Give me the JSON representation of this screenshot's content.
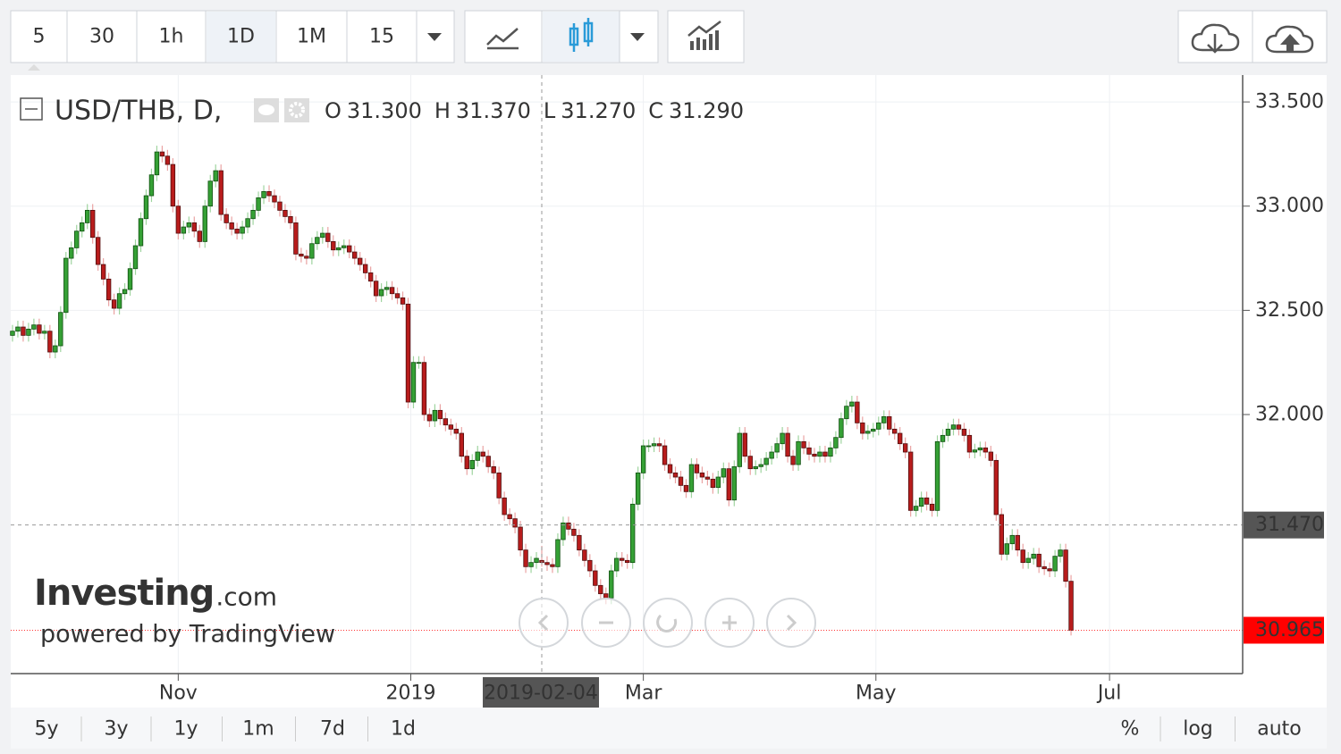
{
  "toolbar": {
    "intervals": [
      "5",
      "30",
      "1h",
      "1D",
      "1M",
      "15"
    ]
  },
  "chart_data": {
    "type": "candlestick",
    "title": "USD/THB, D,",
    "ohlc_legend": [
      {
        "key": "O",
        "value": "31.300"
      },
      {
        "key": "H",
        "value": "31.370"
      },
      {
        "key": "L",
        "value": "31.270"
      },
      {
        "key": "C",
        "value": "31.290"
      }
    ],
    "up_color": "#35a035",
    "down_color": "#b81c1c",
    "grid": true,
    "xlim": [
      -0.33,
      230.1
    ],
    "xticks": [
      {
        "value": 31,
        "label": "Nov"
      },
      {
        "value": 74.5,
        "label": "2019"
      },
      {
        "value": 118,
        "label": "Mar"
      },
      {
        "value": 161.5,
        "label": "May"
      },
      {
        "value": 205.2,
        "label": "Jul"
      }
    ],
    "ylim": [
      30.757,
      33.629
    ],
    "yticks": [
      {
        "value": 32,
        "label": "32.000"
      },
      {
        "value": 32.5,
        "label": "32.500"
      },
      {
        "value": 33,
        "label": "33.000"
      },
      {
        "value": 33.5,
        "label": "33.500"
      }
    ],
    "crosshair": {
      "x": {
        "value": 99,
        "label": "2019-02-04"
      },
      "y": {
        "value": 31.47,
        "label": "31.470"
      }
    },
    "last_price": {
      "value": 30.965,
      "label": "30.965"
    },
    "open": [
      32.38,
      32.4,
      32.42,
      32.38,
      32.41,
      32.43,
      32.39,
      32.4,
      32.3,
      32.33,
      32.49,
      32.75,
      32.8,
      32.88,
      32.92,
      32.98,
      32.85,
      32.72,
      32.65,
      32.55,
      32.51,
      32.58,
      32.6,
      32.7,
      32.81,
      32.94,
      33.05,
      33.15,
      33.26,
      33.24,
      33.2,
      33.0,
      32.87,
      32.9,
      32.92,
      32.88,
      32.83,
      33.0,
      33.12,
      33.17,
      32.96,
      32.92,
      32.89,
      32.87,
      32.9,
      32.94,
      32.98,
      33.04,
      33.07,
      33.05,
      33.02,
      32.98,
      32.95,
      32.92,
      32.77,
      32.76,
      32.75,
      32.82,
      32.85,
      32.87,
      32.83,
      32.79,
      32.8,
      32.81,
      32.78,
      32.75,
      32.72,
      32.68,
      32.64,
      32.57,
      32.6,
      32.61,
      32.58,
      32.56,
      32.53,
      32.06,
      32.25,
      32.25,
      32.0,
      31.97,
      32.02,
      31.98,
      31.95,
      31.93,
      31.91,
      31.8,
      31.74,
      31.78,
      31.82,
      31.8,
      31.75,
      31.72,
      31.6,
      31.52,
      31.5,
      31.46,
      31.35,
      31.27,
      31.29,
      31.3,
      31.29,
      31.28,
      31.27,
      31.4,
      31.48,
      31.45,
      31.42,
      31.35,
      31.3,
      31.25,
      31.18,
      31.14,
      31.12,
      31.25,
      31.31,
      31.3,
      31.29,
      31.57,
      31.72,
      31.85,
      31.85,
      31.86,
      31.85,
      31.76,
      31.72,
      31.7,
      31.66,
      31.63,
      31.76,
      31.72,
      31.7,
      31.69,
      31.65,
      31.7,
      31.74,
      31.59,
      31.75,
      31.91,
      31.8,
      31.74,
      31.75,
      31.76,
      31.79,
      31.82,
      31.86,
      31.91,
      31.8,
      31.76,
      31.87,
      31.84,
      31.81,
      31.8,
      31.82,
      31.8,
      31.84,
      31.89,
      31.98,
      32.04,
      32.06,
      31.96,
      31.91,
      31.92,
      31.93,
      31.96,
      31.99,
      31.93,
      31.91,
      31.86,
      31.82,
      31.54,
      31.56,
      31.6,
      31.57,
      31.54,
      31.87,
      31.9,
      31.93,
      31.95,
      31.93,
      31.9,
      31.82,
      31.83,
      31.84,
      31.82,
      31.78,
      31.52,
      31.33,
      31.38,
      31.42,
      31.35,
      31.29,
      31.31,
      31.33,
      31.27,
      31.26,
      31.25,
      31.32,
      31.35,
      31.2
    ],
    "high": [
      32.43,
      32.45,
      32.45,
      32.44,
      32.46,
      32.46,
      32.43,
      32.43,
      32.36,
      32.52,
      32.78,
      32.83,
      32.91,
      32.95,
      33.01,
      33.01,
      32.88,
      32.75,
      32.68,
      32.58,
      32.61,
      32.63,
      32.73,
      32.84,
      32.97,
      33.08,
      33.18,
      33.29,
      33.29,
      33.27,
      33.23,
      33.03,
      32.93,
      32.95,
      32.95,
      32.91,
      33.03,
      33.15,
      33.2,
      33.2,
      32.99,
      32.95,
      32.92,
      32.93,
      32.97,
      33.01,
      33.07,
      33.1,
      33.1,
      33.08,
      33.05,
      33.01,
      32.98,
      32.95,
      32.8,
      32.79,
      32.85,
      32.88,
      32.9,
      32.9,
      32.86,
      32.83,
      32.84,
      32.84,
      32.81,
      32.78,
      32.75,
      32.71,
      32.67,
      32.63,
      32.64,
      32.64,
      32.61,
      32.59,
      32.56,
      32.28,
      32.28,
      32.28,
      32.03,
      32.05,
      32.05,
      32.01,
      31.98,
      31.96,
      31.94,
      31.83,
      31.81,
      31.85,
      31.85,
      31.83,
      31.78,
      31.75,
      31.63,
      31.55,
      31.53,
      31.49,
      31.38,
      31.32,
      31.34,
      31.37,
      31.32,
      31.31,
      31.43,
      31.51,
      31.51,
      31.48,
      31.45,
      31.38,
      31.33,
      31.28,
      31.21,
      31.17,
      31.28,
      31.34,
      31.34,
      31.33,
      31.6,
      31.75,
      31.88,
      31.88,
      31.89,
      31.89,
      31.88,
      31.79,
      31.75,
      31.73,
      31.69,
      31.79,
      31.79,
      31.75,
      31.73,
      31.72,
      31.73,
      31.77,
      31.77,
      31.78,
      31.94,
      31.94,
      31.83,
      31.78,
      31.79,
      31.82,
      31.85,
      31.89,
      31.94,
      31.94,
      31.83,
      31.9,
      31.9,
      31.87,
      31.84,
      31.85,
      31.85,
      31.87,
      31.92,
      32.01,
      32.07,
      32.09,
      32.09,
      31.99,
      31.95,
      31.96,
      31.99,
      32.02,
      32.02,
      31.96,
      31.94,
      31.89,
      31.85,
      31.59,
      31.63,
      31.63,
      31.6,
      31.9,
      31.93,
      31.96,
      31.98,
      31.98,
      31.96,
      31.93,
      31.86,
      31.87,
      31.87,
      31.85,
      31.81,
      31.55,
      31.41,
      31.45,
      31.45,
      31.38,
      31.34,
      31.36,
      31.36,
      31.3,
      31.29,
      31.35,
      31.38,
      31.38,
      31.23
    ],
    "low": [
      32.35,
      32.37,
      32.35,
      32.35,
      32.38,
      32.36,
      32.36,
      32.27,
      32.27,
      32.3,
      32.46,
      32.72,
      32.77,
      32.85,
      32.89,
      32.82,
      32.69,
      32.62,
      32.52,
      32.48,
      32.48,
      32.55,
      32.57,
      32.67,
      32.78,
      32.91,
      33.02,
      33.12,
      33.21,
      33.17,
      32.97,
      32.84,
      32.84,
      32.87,
      32.85,
      32.8,
      32.8,
      32.97,
      33.09,
      32.93,
      32.89,
      32.86,
      32.84,
      32.84,
      32.87,
      32.91,
      32.95,
      33.01,
      33.02,
      32.99,
      32.95,
      32.92,
      32.89,
      32.74,
      32.73,
      32.72,
      32.72,
      32.79,
      32.82,
      32.8,
      32.76,
      32.76,
      32.77,
      32.75,
      32.72,
      32.69,
      32.65,
      32.61,
      32.54,
      32.54,
      32.57,
      32.55,
      32.53,
      32.5,
      32.03,
      32.03,
      32.22,
      31.97,
      31.94,
      31.94,
      31.95,
      31.92,
      31.9,
      31.88,
      31.77,
      31.71,
      31.71,
      31.75,
      31.77,
      31.72,
      31.69,
      31.57,
      31.49,
      31.47,
      31.43,
      31.32,
      31.24,
      31.24,
      31.26,
      31.27,
      31.25,
      31.24,
      31.24,
      31.37,
      31.42,
      31.39,
      31.32,
      31.27,
      31.22,
      31.15,
      31.11,
      31.09,
      31.09,
      31.22,
      31.27,
      31.26,
      31.26,
      31.54,
      31.69,
      31.82,
      31.82,
      31.82,
      31.73,
      31.69,
      31.67,
      31.63,
      31.6,
      31.6,
      31.69,
      31.67,
      31.66,
      31.62,
      31.62,
      31.67,
      31.56,
      31.56,
      31.72,
      31.77,
      31.71,
      31.71,
      31.72,
      31.73,
      31.76,
      31.79,
      31.83,
      31.77,
      31.73,
      31.73,
      31.81,
      31.78,
      31.77,
      31.77,
      31.77,
      31.77,
      31.81,
      31.86,
      31.95,
      32.01,
      31.93,
      31.88,
      31.88,
      31.89,
      31.9,
      31.93,
      31.9,
      31.88,
      31.83,
      31.79,
      31.51,
      31.51,
      31.53,
      31.54,
      31.51,
      31.51,
      31.84,
      31.87,
      31.9,
      31.9,
      31.87,
      31.79,
      31.79,
      31.8,
      31.79,
      31.75,
      31.49,
      31.3,
      31.3,
      31.35,
      31.32,
      31.26,
      31.26,
      31.28,
      31.24,
      31.23,
      31.22,
      31.22,
      31.29,
      31.17,
      30.94
    ],
    "close": [
      32.4,
      32.42,
      32.38,
      32.41,
      32.43,
      32.39,
      32.4,
      32.3,
      32.33,
      32.49,
      32.75,
      32.8,
      32.88,
      32.92,
      32.98,
      32.85,
      32.72,
      32.65,
      32.55,
      32.51,
      32.58,
      32.6,
      32.7,
      32.81,
      32.94,
      33.05,
      33.15,
      33.26,
      33.24,
      33.2,
      33.0,
      32.87,
      32.9,
      32.92,
      32.88,
      32.83,
      33.0,
      33.12,
      33.17,
      32.96,
      32.92,
      32.89,
      32.87,
      32.9,
      32.94,
      32.98,
      33.04,
      33.07,
      33.05,
      33.02,
      32.98,
      32.95,
      32.92,
      32.77,
      32.76,
      32.75,
      32.82,
      32.85,
      32.87,
      32.83,
      32.79,
      32.8,
      32.81,
      32.78,
      32.75,
      32.72,
      32.68,
      32.64,
      32.57,
      32.6,
      32.61,
      32.58,
      32.56,
      32.53,
      32.06,
      32.25,
      32.25,
      32.0,
      31.97,
      32.02,
      31.98,
      31.95,
      31.93,
      31.91,
      31.8,
      31.74,
      31.78,
      31.82,
      31.8,
      31.75,
      31.72,
      31.6,
      31.52,
      31.5,
      31.46,
      31.35,
      31.27,
      31.29,
      31.31,
      31.29,
      31.28,
      31.27,
      31.4,
      31.48,
      31.45,
      31.42,
      31.35,
      31.3,
      31.25,
      31.18,
      31.14,
      31.12,
      31.25,
      31.31,
      31.3,
      31.29,
      31.57,
      31.72,
      31.85,
      31.85,
      31.86,
      31.85,
      31.76,
      31.72,
      31.7,
      31.66,
      31.63,
      31.76,
      31.72,
      31.7,
      31.69,
      31.65,
      31.7,
      31.74,
      31.59,
      31.75,
      31.91,
      31.8,
      31.74,
      31.75,
      31.76,
      31.79,
      31.82,
      31.86,
      31.91,
      31.8,
      31.76,
      31.87,
      31.84,
      31.81,
      31.8,
      31.82,
      31.8,
      31.84,
      31.89,
      31.98,
      32.04,
      32.06,
      31.96,
      31.91,
      31.92,
      31.93,
      31.96,
      31.99,
      31.93,
      31.91,
      31.86,
      31.82,
      31.54,
      31.56,
      31.6,
      31.57,
      31.54,
      31.87,
      31.9,
      31.93,
      31.95,
      31.93,
      31.9,
      31.82,
      31.83,
      31.84,
      31.82,
      31.78,
      31.52,
      31.33,
      31.38,
      31.42,
      31.35,
      31.29,
      31.31,
      31.33,
      31.27,
      31.26,
      31.25,
      31.32,
      31.35,
      31.2,
      30.965
    ]
  },
  "branding": {
    "logo": "Investing",
    "logo_suffix": ".com",
    "powered_by": "powered by TradingView"
  },
  "range_buttons": [
    "5y",
    "3y",
    "1y",
    "1m",
    "7d",
    "1d"
  ],
  "scale_buttons": [
    "%",
    "log",
    "auto"
  ]
}
